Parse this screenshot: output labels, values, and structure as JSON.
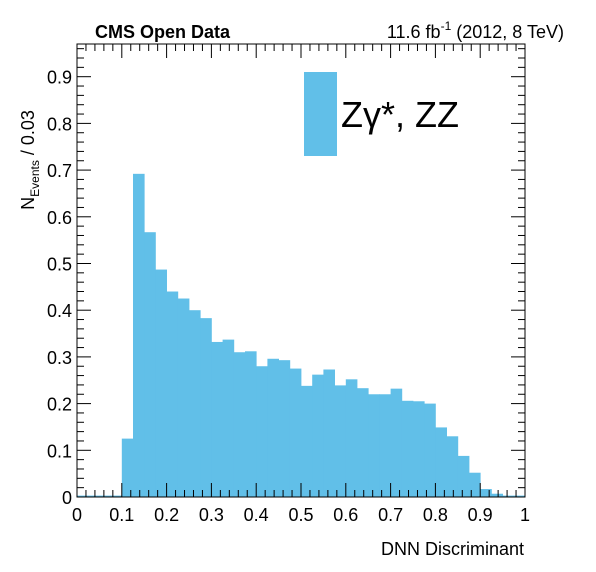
{
  "header": {
    "left": "CMS Open Data",
    "lumi_value": "11.6 fb",
    "lumi_exp": "-1",
    "lumi_rest": " (2012, 8 TeV)"
  },
  "legend": {
    "label": "Zγ*, ZZ",
    "color": "#61BFE8"
  },
  "chart_data": {
    "type": "bar",
    "title": "",
    "xlabel": "DNN Discriminant",
    "ylabel": "N",
    "ylabel_sub": "Events",
    "ylabel_suffix": " / 0.03",
    "xlim": [
      0,
      1
    ],
    "ylim": [
      0,
      0.97
    ],
    "bin_width": 0.025,
    "x_ticks": [
      "0",
      "0.1",
      "0.2",
      "0.3",
      "0.4",
      "0.5",
      "0.6",
      "0.7",
      "0.8",
      "0.9",
      "1"
    ],
    "y_ticks": [
      "0",
      "0.1",
      "0.2",
      "0.3",
      "0.4",
      "0.5",
      "0.6",
      "0.7",
      "0.8",
      "0.9"
    ],
    "series": [
      {
        "name": "Zγ*, ZZ",
        "color": "#61BFE8",
        "bin_edges": [
          0,
          0.025,
          0.05,
          0.075,
          0.1,
          0.125,
          0.15,
          0.175,
          0.2,
          0.225,
          0.25,
          0.275,
          0.3,
          0.325,
          0.35,
          0.375,
          0.4,
          0.425,
          0.45,
          0.475,
          0.5,
          0.525,
          0.55,
          0.575,
          0.6,
          0.625,
          0.65,
          0.675,
          0.7,
          0.725,
          0.75,
          0.775,
          0.8,
          0.825,
          0.85,
          0.875,
          0.9,
          0.925,
          0.95,
          0.975,
          1.0
        ],
        "values": [
          0.003,
          0.003,
          0.003,
          0.003,
          0.125,
          0.692,
          0.567,
          0.487,
          0.44,
          0.425,
          0.4,
          0.383,
          0.332,
          0.337,
          0.31,
          0.312,
          0.28,
          0.296,
          0.293,
          0.275,
          0.238,
          0.262,
          0.273,
          0.239,
          0.252,
          0.233,
          0.22,
          0.22,
          0.232,
          0.206,
          0.205,
          0.2,
          0.149,
          0.13,
          0.088,
          0.052,
          0.017,
          0.007,
          0.003,
          0.003
        ]
      }
    ]
  }
}
